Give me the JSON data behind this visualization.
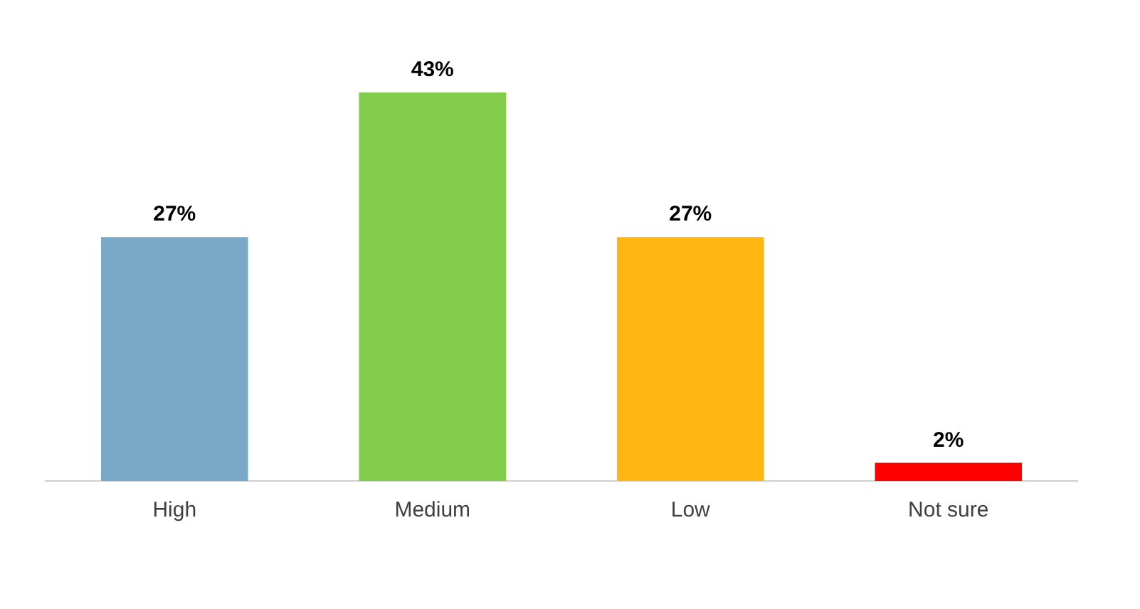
{
  "chart_data": {
    "type": "bar",
    "categories": [
      "High",
      "Medium",
      "Low",
      "Not sure"
    ],
    "values": [
      27,
      43,
      27,
      2
    ],
    "colors": [
      "#7aa9c8",
      "#84cc4b",
      "#ffb612",
      "#ff0000"
    ],
    "value_labels": [
      "27%",
      "43%",
      "27%",
      "2%"
    ],
    "grid": false,
    "legend": false
  }
}
